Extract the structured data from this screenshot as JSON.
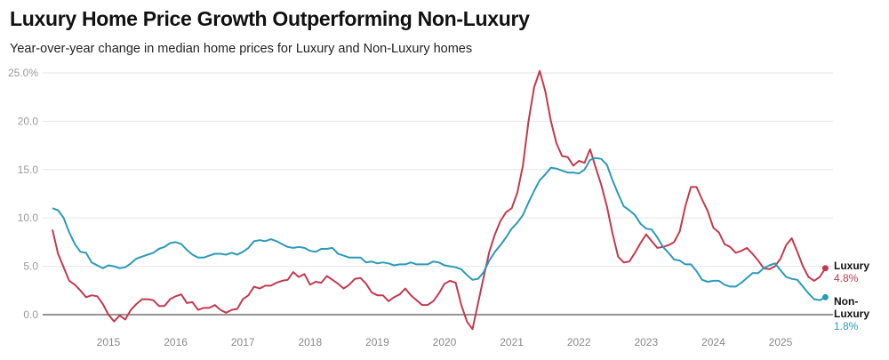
{
  "title": "Luxury Home Price Growth Outperforming Non-Luxury",
  "subtitle": "Year-over-year change in median home prices for Luxury and Non-Luxury homes",
  "chart_data": {
    "type": "line",
    "xlabel": "",
    "ylabel": "",
    "ylim": [
      -2,
      25
    ],
    "yticks": [
      "25.0%",
      "20.0",
      "15.0",
      "10.0",
      "5.0",
      "0.0"
    ],
    "ytick_values": [
      25,
      20,
      15,
      10,
      5,
      0
    ],
    "xticks": [
      "2015",
      "2016",
      "2017",
      "2018",
      "2019",
      "2020",
      "2021",
      "2022",
      "2023",
      "2024",
      "2025"
    ],
    "grid": true,
    "legend": "end-labels-right",
    "x": [
      "2014-03",
      "2014-04",
      "2014-05",
      "2014-06",
      "2014-07",
      "2014-08",
      "2014-09",
      "2014-10",
      "2014-11",
      "2014-12",
      "2015-01",
      "2015-02",
      "2015-03",
      "2015-04",
      "2015-05",
      "2015-06",
      "2015-07",
      "2015-08",
      "2015-09",
      "2015-10",
      "2015-11",
      "2015-12",
      "2016-01",
      "2016-02",
      "2016-03",
      "2016-04",
      "2016-05",
      "2016-06",
      "2016-07",
      "2016-08",
      "2016-09",
      "2016-10",
      "2016-11",
      "2016-12",
      "2017-01",
      "2017-02",
      "2017-03",
      "2017-04",
      "2017-05",
      "2017-06",
      "2017-07",
      "2017-08",
      "2017-09",
      "2017-10",
      "2017-11",
      "2017-12",
      "2018-01",
      "2018-02",
      "2018-03",
      "2018-04",
      "2018-05",
      "2018-06",
      "2018-07",
      "2018-08",
      "2018-09",
      "2018-10",
      "2018-11",
      "2018-12",
      "2019-01",
      "2019-02",
      "2019-03",
      "2019-04",
      "2019-05",
      "2019-06",
      "2019-07",
      "2019-08",
      "2019-09",
      "2019-10",
      "2019-11",
      "2019-12",
      "2020-01",
      "2020-02",
      "2020-03",
      "2020-04",
      "2020-05",
      "2020-06",
      "2020-07",
      "2020-08",
      "2020-09",
      "2020-10",
      "2020-11",
      "2020-12",
      "2021-01",
      "2021-02",
      "2021-03",
      "2021-04",
      "2021-05",
      "2021-06",
      "2021-07",
      "2021-08",
      "2021-09",
      "2021-10",
      "2021-11",
      "2021-12",
      "2022-01",
      "2022-02",
      "2022-03",
      "2022-04",
      "2022-05",
      "2022-06",
      "2022-07",
      "2022-08",
      "2022-09",
      "2022-10",
      "2022-11",
      "2022-12",
      "2023-01",
      "2023-02",
      "2023-03",
      "2023-04",
      "2023-05",
      "2023-06",
      "2023-07",
      "2023-08",
      "2023-09",
      "2023-10",
      "2023-11",
      "2023-12",
      "2024-01",
      "2024-02",
      "2024-03",
      "2024-04",
      "2024-05",
      "2024-06",
      "2024-07",
      "2024-08",
      "2024-09",
      "2024-10",
      "2024-11",
      "2024-12",
      "2025-01",
      "2025-02",
      "2025-03",
      "2025-04",
      "2025-05",
      "2025-06",
      "2025-07",
      "2025-08",
      "2025-09"
    ],
    "series": [
      {
        "name": "Luxury",
        "end_label": "Luxury",
        "end_value_label": "4.8%",
        "color": "#c23a4e",
        "values": [
          8.8,
          6.3,
          4.9,
          3.5,
          3.1,
          2.5,
          1.8,
          2.0,
          1.9,
          1.1,
          0.0,
          -0.7,
          -0.1,
          -0.5,
          0.5,
          1.1,
          1.6,
          1.6,
          1.5,
          0.9,
          0.9,
          1.6,
          1.9,
          2.1,
          1.2,
          1.3,
          0.5,
          0.7,
          0.7,
          1.0,
          0.5,
          0.2,
          0.5,
          0.6,
          1.6,
          2.0,
          2.9,
          2.7,
          3.0,
          3.0,
          3.3,
          3.5,
          3.6,
          4.4,
          3.9,
          4.2,
          3.1,
          3.4,
          3.3,
          4.0,
          3.6,
          3.2,
          2.7,
          3.1,
          3.7,
          3.8,
          3.2,
          2.3,
          2.0,
          2.0,
          1.4,
          1.8,
          2.1,
          2.7,
          2.0,
          1.5,
          1.0,
          1.0,
          1.4,
          2.2,
          3.2,
          3.5,
          3.3,
          1.0,
          -0.7,
          -1.5,
          1.2,
          3.9,
          6.5,
          8.3,
          9.7,
          10.6,
          11.0,
          12.6,
          15.4,
          20.0,
          23.5,
          25.2,
          23.1,
          20.0,
          17.7,
          16.4,
          16.3,
          15.4,
          15.9,
          15.7,
          17.1,
          15.2,
          13.4,
          11.2,
          8.4,
          6.0,
          5.4,
          5.5,
          6.4,
          7.4,
          8.3,
          7.6,
          6.9,
          7.0,
          7.2,
          7.5,
          8.6,
          11.2,
          13.2,
          13.2,
          11.9,
          10.7,
          9.0,
          8.5,
          7.3,
          7.0,
          6.4,
          6.6,
          6.9,
          6.3,
          5.6,
          4.8,
          4.7,
          5.0,
          5.8,
          7.2,
          7.9,
          6.5,
          5.0,
          3.9,
          3.5,
          3.9,
          4.8
        ]
      },
      {
        "name": "Non-Luxury",
        "end_label": "Non-Luxury",
        "end_label_lines": [
          "Non-",
          "Luxury"
        ],
        "end_value_label": "1.8%",
        "color": "#2b9ab8",
        "values": [
          11.0,
          10.8,
          10.0,
          8.5,
          7.3,
          6.5,
          6.4,
          5.4,
          5.1,
          4.8,
          5.1,
          5.0,
          4.8,
          4.9,
          5.3,
          5.8,
          6.0,
          6.2,
          6.4,
          6.8,
          7.0,
          7.4,
          7.5,
          7.3,
          6.7,
          6.2,
          5.9,
          5.9,
          6.1,
          6.3,
          6.3,
          6.2,
          6.4,
          6.2,
          6.5,
          6.9,
          7.6,
          7.7,
          7.6,
          7.8,
          7.6,
          7.3,
          7.0,
          6.9,
          7.0,
          6.9,
          6.6,
          6.5,
          6.8,
          6.8,
          6.9,
          6.3,
          6.1,
          5.9,
          5.9,
          5.9,
          5.4,
          5.5,
          5.3,
          5.4,
          5.3,
          5.1,
          5.2,
          5.2,
          5.4,
          5.2,
          5.2,
          5.2,
          5.5,
          5.4,
          5.1,
          5.0,
          4.9,
          4.7,
          4.1,
          3.6,
          3.7,
          4.4,
          5.6,
          6.5,
          7.2,
          8.0,
          8.9,
          9.5,
          10.3,
          11.6,
          12.8,
          13.9,
          14.5,
          15.2,
          15.1,
          14.9,
          14.7,
          14.7,
          14.6,
          15.0,
          16.0,
          16.2,
          16.1,
          15.5,
          13.9,
          12.5,
          11.2,
          10.8,
          10.3,
          9.4,
          8.9,
          8.8,
          8.0,
          7.0,
          6.4,
          5.7,
          5.6,
          5.2,
          5.2,
          4.5,
          3.6,
          3.4,
          3.5,
          3.5,
          3.1,
          2.9,
          2.9,
          3.3,
          3.8,
          4.3,
          4.3,
          4.8,
          5.1,
          5.3,
          4.6,
          3.9,
          3.7,
          3.6,
          2.9,
          2.2,
          1.6,
          1.5,
          1.8
        ]
      }
    ]
  }
}
